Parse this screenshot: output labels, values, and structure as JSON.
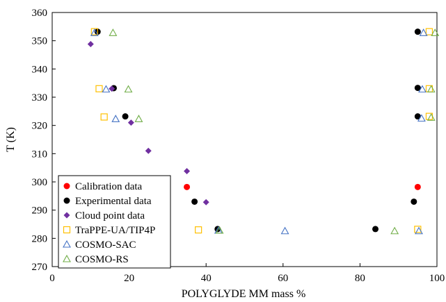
{
  "chart_data": {
    "type": "scatter",
    "xlabel": "POLYGLYDE MM mass %",
    "ylabel": "T (K)",
    "xlim": [
      0,
      100
    ],
    "ylim": [
      270,
      360
    ],
    "x_ticks": [
      "0",
      "20",
      "40",
      "60",
      "80",
      "100"
    ],
    "y_ticks": [
      "270",
      "280",
      "290",
      "300",
      "310",
      "320",
      "330",
      "340",
      "350",
      "360"
    ],
    "grid": false,
    "legend_position": "bottom-left",
    "series": [
      {
        "name": "Calibration data",
        "marker": "filled-circle",
        "color": "#ff0000",
        "points": [
          [
            35,
            298.2
          ],
          [
            95,
            298.2
          ]
        ]
      },
      {
        "name": "Experimental data",
        "marker": "filled-circle",
        "color": "#000000",
        "points": [
          [
            11.8,
            353.2
          ],
          [
            16,
            333.2
          ],
          [
            19,
            323.2
          ],
          [
            37,
            293.0
          ],
          [
            43,
            283.3
          ],
          [
            84,
            283.3
          ],
          [
            94,
            293.0
          ],
          [
            95,
            323.2
          ],
          [
            95,
            333.3
          ],
          [
            95,
            353.2
          ]
        ]
      },
      {
        "name": "Cloud point data",
        "marker": "filled-diamond",
        "color": "#7030a0",
        "points": [
          [
            10,
            348.8
          ],
          [
            15.5,
            333.0
          ],
          [
            20.5,
            321.0
          ],
          [
            25,
            311.0
          ],
          [
            35,
            303.8
          ],
          [
            40,
            292.8
          ]
        ]
      },
      {
        "name": "TraPPE-UA/TIP4P",
        "marker": "open-square",
        "color": "#ffc000",
        "points": [
          [
            11,
            353.2
          ],
          [
            12.2,
            333.0
          ],
          [
            13.5,
            323.0
          ],
          [
            38,
            283.0
          ],
          [
            95,
            283.2
          ],
          [
            98,
            353.2
          ],
          [
            98,
            333.0
          ],
          [
            98,
            323.2
          ]
        ]
      },
      {
        "name": "COSMO-SAC",
        "marker": "open-triangle",
        "color": "#4472c4",
        "points": [
          [
            11,
            352.8
          ],
          [
            14,
            332.8
          ],
          [
            16.5,
            322.3
          ],
          [
            43.2,
            282.8
          ],
          [
            60.5,
            282.6
          ],
          [
            95.3,
            282.6
          ],
          [
            96,
            322.5
          ],
          [
            96.2,
            332.8
          ],
          [
            96.5,
            352.8
          ]
        ]
      },
      {
        "name": "COSMO-RS",
        "marker": "open-triangle",
        "color": "#70ad47",
        "points": [
          [
            15.8,
            352.8
          ],
          [
            19.8,
            332.8
          ],
          [
            22.5,
            322.3
          ],
          [
            43.5,
            282.8
          ],
          [
            89,
            282.6
          ],
          [
            98.5,
            332.8
          ],
          [
            98.5,
            322.8
          ],
          [
            99.5,
            352.8
          ]
        ]
      }
    ]
  }
}
